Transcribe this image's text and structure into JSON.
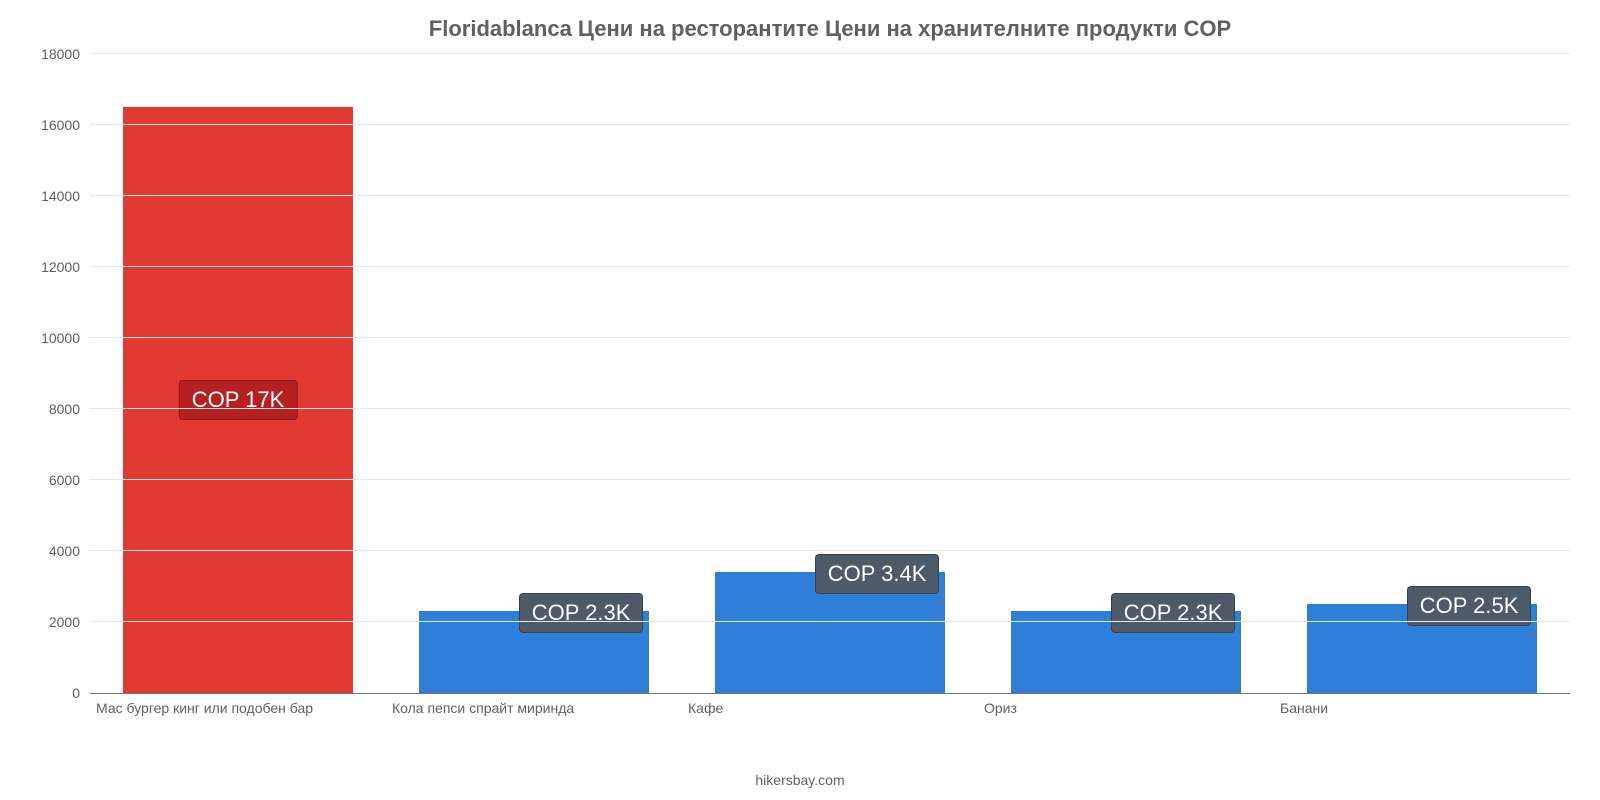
{
  "chart": {
    "type": "bar",
    "title": "Floridablanca Цени на ресторантите Цени на хранителните продукти COP",
    "title_fontsize": 22,
    "title_color": "#606060",
    "source_label": "hikersbay.com",
    "background_color": "#ffffff",
    "grid_color": "#e6e6e6",
    "axis_color": "#777777",
    "tick_label_color": "#606060",
    "tick_label_fontsize": 14,
    "badge_fontsize": 22,
    "bar_width_pct": 78,
    "ylim": [
      0,
      18000
    ],
    "ytick_step": 2000,
    "yticks": [
      0,
      2000,
      4000,
      6000,
      8000,
      10000,
      12000,
      14000,
      16000,
      18000
    ],
    "categories": [
      "Мас бургер кинг или подобен бар",
      "Кола пепси спрайт миринда",
      "Кафе",
      "Ориз",
      "Банани"
    ],
    "values": [
      16500,
      2300,
      3400,
      2300,
      2500
    ],
    "value_labels": [
      "COP 17K",
      "COP 2.3K",
      "COP 3.4K",
      "COP 2.3K",
      "COP 2.5K"
    ],
    "bar_colors": [
      "#e23a32",
      "#2f7ed8",
      "#2f7ed8",
      "#2f7ed8",
      "#2f7ed8"
    ],
    "badge_colors": [
      "#b62020",
      "#4d5a6a",
      "#4d5a6a",
      "#4d5a6a",
      "#4d5a6a"
    ],
    "badge_position": [
      "inside",
      "top-right",
      "top-right",
      "top-right",
      "top-right"
    ]
  }
}
